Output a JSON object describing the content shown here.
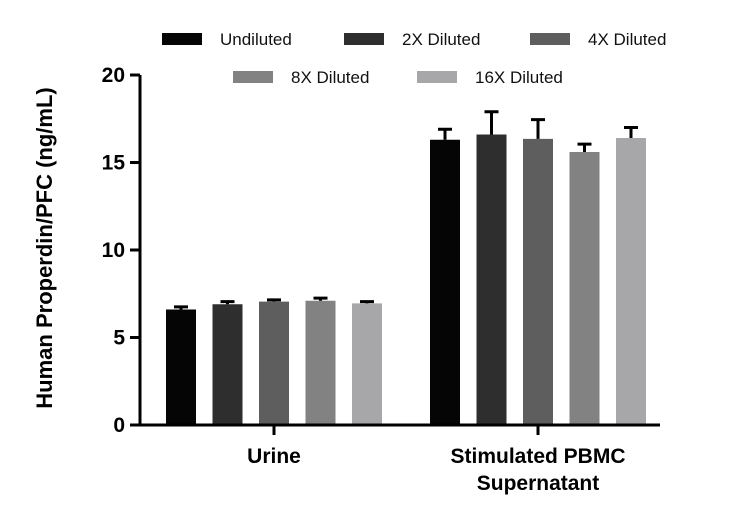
{
  "chart_data": {
    "type": "bar",
    "title": "",
    "xlabel": "",
    "ylabel": "Human Properdin/PFC (ng/mL)",
    "categories": [
      [
        "Urine"
      ],
      [
        "Stimulated PBMC",
        "Supernatant"
      ]
    ],
    "ylim": [
      0,
      20
    ],
    "yticks": [
      0,
      5,
      10,
      15,
      20
    ],
    "grid": false,
    "legend_position": "top",
    "series": [
      {
        "name": "Undiluted",
        "color": "#050505",
        "values": [
          6.6,
          16.3
        ],
        "errors": [
          0.15,
          0.6
        ]
      },
      {
        "name": "2X Diluted",
        "color": "#2e2e2e",
        "values": [
          6.9,
          16.6
        ],
        "errors": [
          0.15,
          1.3
        ]
      },
      {
        "name": "4X Diluted",
        "color": "#5e5e5e",
        "values": [
          7.05,
          16.35
        ],
        "errors": [
          0.1,
          1.1
        ]
      },
      {
        "name": "8X Diluted",
        "color": "#828282",
        "values": [
          7.1,
          15.6
        ],
        "errors": [
          0.15,
          0.45
        ]
      },
      {
        "name": "16X Diluted",
        "color": "#a7a7a9",
        "values": [
          6.95,
          16.4
        ],
        "errors": [
          0.1,
          0.6
        ]
      }
    ]
  }
}
